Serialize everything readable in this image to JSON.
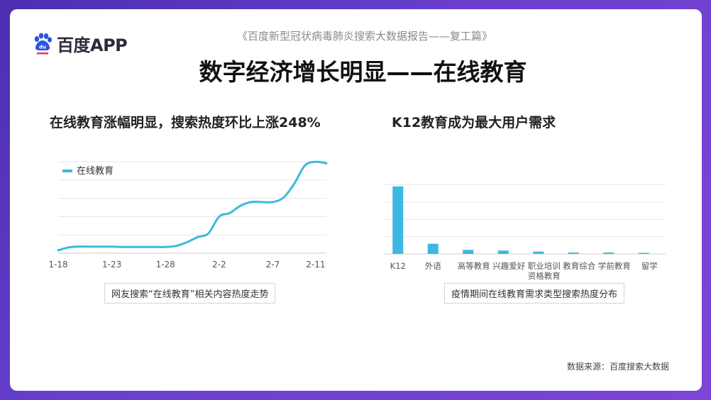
{
  "header": {
    "logo_text": "百度APP",
    "report_title": "《百度新型冠状病毒肺炎搜索大数据报告——复工篇》",
    "main_title": "数字经济增长明显——在线教育"
  },
  "left_panel": {
    "subtitle": "在线教育涨幅明显，搜索热度环比上涨248%",
    "caption": "网友搜索“在线教育”相关内容热度走势"
  },
  "right_panel": {
    "subtitle": "K12教育成为最大用户需求",
    "caption": "疫情期间在线教育需求类型搜索热度分布"
  },
  "footer": {
    "source": "数据来源：百度搜索大数据"
  },
  "colors": {
    "accent": "#3db8e0",
    "grid": "#e6e6e6",
    "axis": "#cccccc"
  },
  "chart_data": [
    {
      "type": "line",
      "title": "",
      "legend_position": "top-left",
      "series": [
        {
          "name": "在线教育",
          "x": [
            0,
            1,
            2,
            3,
            4,
            5,
            6,
            7,
            8,
            9,
            10,
            11,
            12,
            13,
            14,
            15,
            16,
            17,
            18,
            19,
            20,
            21,
            22,
            23,
            24,
            25
          ],
          "values": [
            4,
            8,
            9,
            9,
            9,
            9,
            8.5,
            8.5,
            8.5,
            8.5,
            8.5,
            10,
            15,
            22,
            27,
            50,
            55,
            65,
            70,
            70,
            70,
            76,
            95,
            120,
            125,
            123
          ]
        }
      ],
      "x_tick_labels": [
        "1-18",
        "1-23",
        "1-28",
        "2-2",
        "2-7",
        "2-11"
      ],
      "x_tick_positions": [
        0,
        5,
        10,
        15,
        20,
        24
      ],
      "ylim": [
        0,
        130
      ],
      "grid": true,
      "y_tick_labels_shown": false
    },
    {
      "type": "bar",
      "title": "",
      "categories": [
        "K12",
        "外语",
        "高等教育",
        "兴趣爱好",
        "职业培训\n资格教育",
        "教育综合",
        "学前教育",
        "留学"
      ],
      "values": [
        100,
        15,
        6,
        5,
        3.5,
        2,
        2,
        1.5
      ],
      "ylim": [
        0,
        105
      ],
      "grid": true,
      "y_tick_labels_shown": false
    }
  ]
}
